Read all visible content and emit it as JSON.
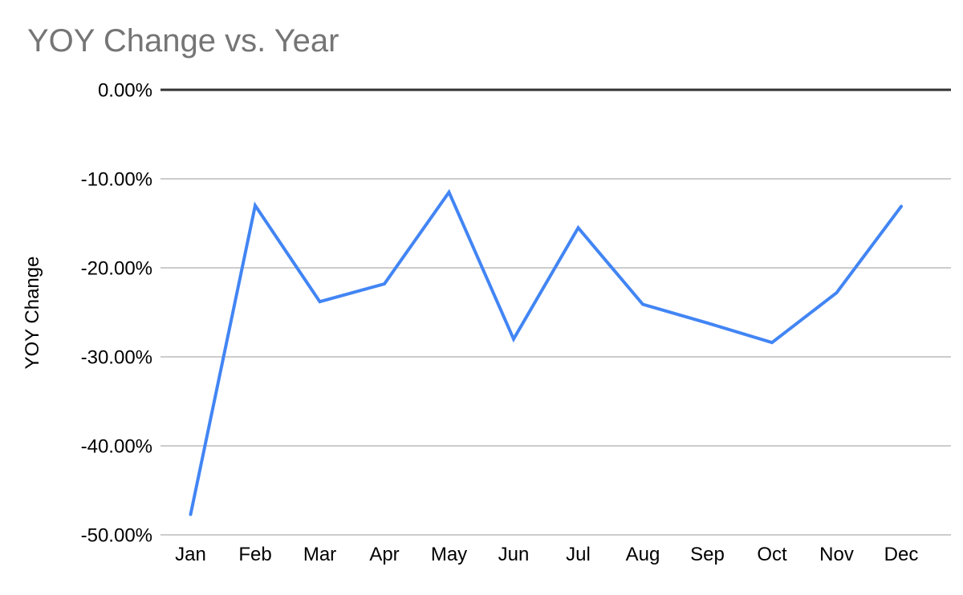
{
  "page": {
    "background_color": "#ffffff"
  },
  "chart_data": {
    "type": "line",
    "title": "YOY Change vs. Year",
    "xlabel": "",
    "ylabel": "YOY Change",
    "categories": [
      "Jan",
      "Feb",
      "Mar",
      "Apr",
      "May",
      "Jun",
      "Jul",
      "Aug",
      "Sep",
      "Oct",
      "Nov",
      "Dec"
    ],
    "series": [
      {
        "name": "YOY Change",
        "values": [
          -47.7,
          -13.0,
          -23.8,
          -21.8,
          -11.5,
          -28.0,
          -15.5,
          -24.1,
          -26.2,
          -28.4,
          -22.8,
          -13.1
        ]
      }
    ],
    "ylim": [
      -50,
      0
    ],
    "y_ticks": [
      {
        "value": 0,
        "label": "0.00%"
      },
      {
        "value": -10,
        "label": "-10.00%"
      },
      {
        "value": -20,
        "label": "-20.00%"
      },
      {
        "value": -30,
        "label": "-30.00%"
      },
      {
        "value": -40,
        "label": "-40.00%"
      },
      {
        "value": -50,
        "label": "-50.00%"
      }
    ],
    "grid": true,
    "legend_position": "none",
    "colors": {
      "line": "#4285f4",
      "gridline": "#cccccc",
      "zero_axis_line": "#333333",
      "title_text": "#757575",
      "tick_text": "#000000",
      "axis_title_text": "#000000"
    }
  }
}
